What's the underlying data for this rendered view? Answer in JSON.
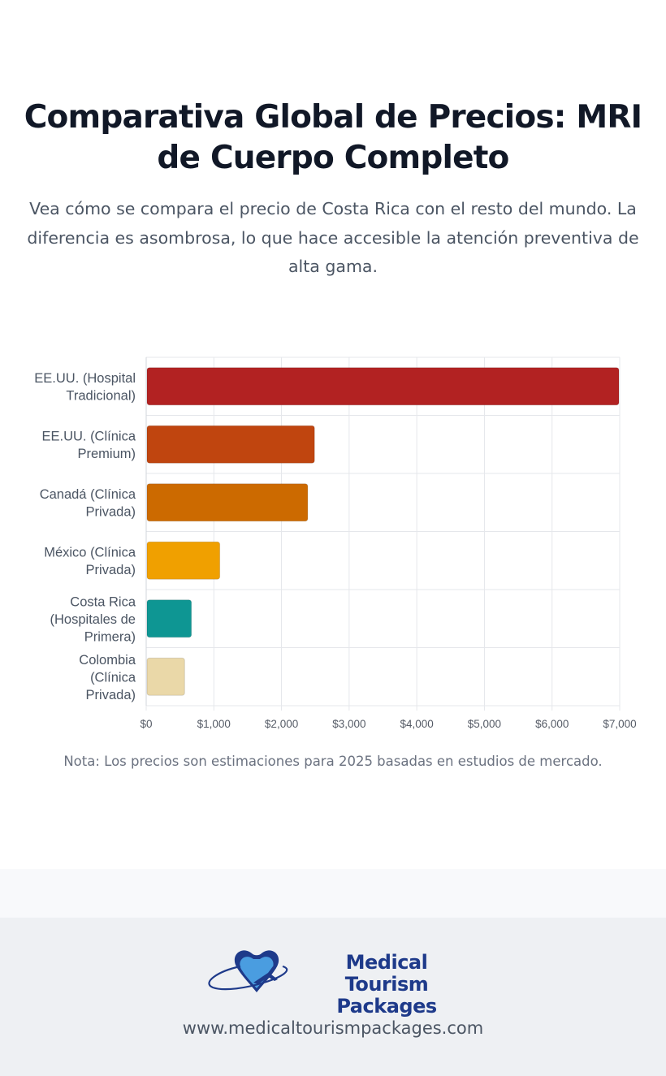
{
  "header": {
    "title": "Comparativa Global de Precios: MRI de Cuerpo Completo",
    "subtitle": "Vea cómo se compara el precio de Costa Rica con el resto del mundo. La diferencia es asombrosa, lo que hace accesible la atención preventiva de alta gama."
  },
  "chart_data": {
    "type": "bar",
    "orientation": "horizontal",
    "categories": [
      [
        "EE.UU. (Hospital",
        "Tradicional)"
      ],
      [
        "EE.UU. (Clínica",
        "Premium)"
      ],
      [
        "Canadá (Clínica",
        "Privada)"
      ],
      [
        "México (Clínica",
        "Privada)"
      ],
      [
        "Costa Rica",
        "(Hospitales de",
        "Primera)"
      ],
      [
        "Colombia",
        "(Clínica",
        "Privada)"
      ]
    ],
    "values": [
      7000,
      2500,
      2400,
      1100,
      680,
      580
    ],
    "colors": [
      "#b22222",
      "#c0450f",
      "#cc6a00",
      "#f0a000",
      "#0e9693",
      "#ead8a8"
    ],
    "xlim": [
      0,
      7000
    ],
    "xticks": [
      0,
      1000,
      2000,
      3000,
      4000,
      5000,
      6000,
      7000
    ],
    "xtick_labels": [
      "$0",
      "$1,000",
      "$2,000",
      "$3,000",
      "$4,000",
      "$5,000",
      "$6,000",
      "$7,000"
    ],
    "grid": true,
    "legend": "none"
  },
  "note": "Nota: Los precios son estimaciones para 2025 basadas en estudios de mercado.",
  "footer": {
    "brand_line1": "Medical Tourism",
    "brand_line2": "Packages",
    "url": "www.medicaltourismpackages.com"
  }
}
